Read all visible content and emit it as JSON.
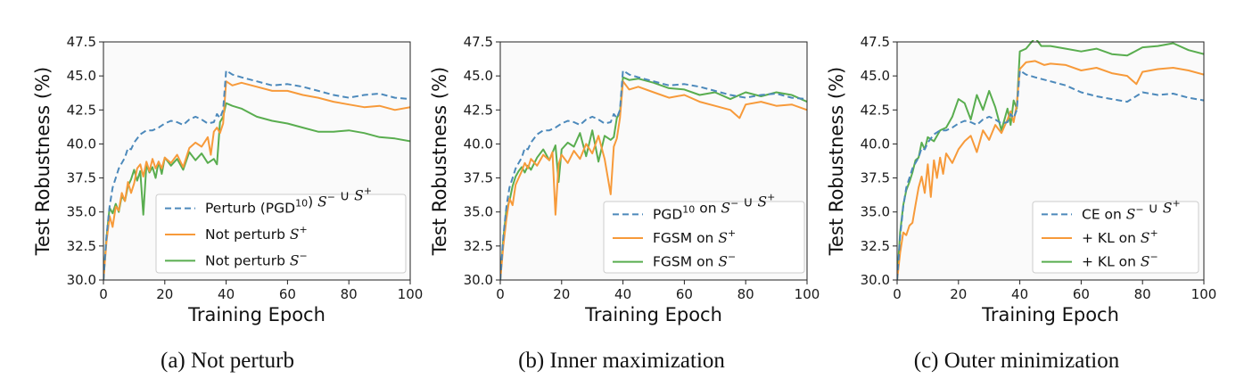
{
  "colors": {
    "blue": "#4c89bb",
    "orange": "#f79a3a",
    "green": "#59ad4f",
    "axes_bg": "#fafafa"
  },
  "chart_data": [
    {
      "type": "line",
      "caption": "(a) Not perturb",
      "xlabel": "Training Epoch",
      "ylabel": "Test Robustness (%)",
      "xlim": [
        0,
        100
      ],
      "ylim": [
        30.0,
        47.5
      ],
      "xticks": [
        "0",
        "20",
        "40",
        "60",
        "80",
        "100"
      ],
      "yticks": [
        "30.0",
        "32.5",
        "35.0",
        "37.5",
        "40.0",
        "42.5",
        "45.0",
        "47.5"
      ],
      "grid": false,
      "legend_position": "lower-right",
      "series": [
        {
          "name": "Perturb (PGD10) S− ∪ S+",
          "color": "blue",
          "style": "dashed",
          "x": [
            0,
            1,
            2,
            3,
            4,
            5,
            6,
            7,
            8,
            9,
            10,
            12,
            14,
            16,
            18,
            20,
            22,
            24,
            26,
            28,
            30,
            32,
            34,
            36,
            37,
            38,
            39,
            40,
            42,
            45,
            50,
            55,
            60,
            65,
            70,
            75,
            80,
            85,
            90,
            95,
            100
          ],
          "y": [
            30.0,
            33.2,
            35.4,
            36.8,
            37.5,
            38.2,
            38.6,
            39.0,
            39.7,
            39.6,
            40.1,
            40.7,
            41.0,
            41.0,
            41.2,
            41.5,
            41.7,
            41.6,
            41.4,
            41.8,
            42.0,
            41.8,
            41.5,
            41.6,
            42.2,
            41.9,
            42.5,
            45.4,
            45.1,
            44.9,
            44.6,
            44.3,
            44.4,
            44.2,
            43.9,
            43.6,
            43.4,
            43.6,
            43.7,
            43.4,
            43.3
          ]
        },
        {
          "name": "Not perturb S+",
          "color": "orange",
          "style": "solid",
          "x": [
            0,
            1,
            2,
            3,
            4,
            5,
            6,
            7,
            8,
            9,
            10,
            11,
            12,
            13,
            14,
            15,
            16,
            17,
            18,
            19,
            20,
            22,
            24,
            26,
            28,
            30,
            32,
            34,
            35,
            36,
            37,
            38,
            39,
            40,
            42,
            45,
            50,
            55,
            60,
            65,
            70,
            75,
            80,
            85,
            90,
            95,
            100
          ],
          "y": [
            30.0,
            32.8,
            34.7,
            33.9,
            35.4,
            35.1,
            36.4,
            35.8,
            37.2,
            36.4,
            37.1,
            38.2,
            38.5,
            37.6,
            38.7,
            38.0,
            38.9,
            38.2,
            38.7,
            38.2,
            39.0,
            38.6,
            39.2,
            38.3,
            39.7,
            40.1,
            39.8,
            40.5,
            39.2,
            40.9,
            41.2,
            40.8,
            41.5,
            44.6,
            44.3,
            44.5,
            44.2,
            43.9,
            43.9,
            43.6,
            43.4,
            43.1,
            42.9,
            42.7,
            42.8,
            42.5,
            42.7
          ]
        },
        {
          "name": "Not perturb S−",
          "color": "green",
          "style": "solid",
          "x": [
            0,
            1,
            2,
            3,
            4,
            5,
            6,
            7,
            8,
            9,
            10,
            11,
            12,
            13,
            14,
            15,
            16,
            17,
            18,
            19,
            20,
            22,
            24,
            26,
            28,
            30,
            32,
            34,
            36,
            37,
            38,
            39,
            40,
            42,
            45,
            50,
            55,
            60,
            65,
            70,
            75,
            80,
            85,
            90,
            95,
            100
          ],
          "y": [
            30.0,
            33.1,
            35.3,
            34.9,
            35.6,
            35.0,
            36.2,
            35.8,
            36.9,
            37.4,
            38.1,
            37.3,
            38.0,
            34.8,
            38.5,
            37.9,
            38.3,
            37.5,
            38.7,
            37.8,
            39.0,
            38.4,
            38.9,
            38.1,
            39.4,
            38.8,
            39.3,
            38.6,
            38.9,
            38.5,
            41.6,
            42.0,
            43.0,
            42.8,
            42.6,
            42.0,
            41.7,
            41.5,
            41.2,
            40.9,
            40.9,
            41.0,
            40.8,
            40.5,
            40.4,
            40.2
          ]
        }
      ]
    },
    {
      "type": "line",
      "caption": "(b) Inner maximization",
      "xlabel": "Training Epoch",
      "ylabel": "Test Robustness (%)",
      "xlim": [
        0,
        100
      ],
      "ylim": [
        30.0,
        47.5
      ],
      "xticks": [
        "0",
        "20",
        "40",
        "60",
        "80",
        "100"
      ],
      "yticks": [
        "30.0",
        "32.5",
        "35.0",
        "37.5",
        "40.0",
        "42.5",
        "45.0",
        "47.5"
      ],
      "grid": false,
      "legend_position": "lower-right",
      "series": [
        {
          "name": "PGD10 on S− ∪ S+",
          "color": "blue",
          "style": "dashed",
          "x": [
            0,
            1,
            2,
            3,
            4,
            5,
            6,
            7,
            8,
            9,
            10,
            12,
            14,
            16,
            18,
            20,
            22,
            24,
            26,
            28,
            30,
            32,
            34,
            36,
            37,
            38,
            39,
            40,
            42,
            45,
            50,
            55,
            60,
            65,
            70,
            75,
            80,
            85,
            90,
            95,
            100
          ],
          "y": [
            30.0,
            33.2,
            35.4,
            36.8,
            37.5,
            38.2,
            38.6,
            39.0,
            39.7,
            39.6,
            40.1,
            40.7,
            41.0,
            41.0,
            41.2,
            41.5,
            41.7,
            41.6,
            41.4,
            41.8,
            42.0,
            41.8,
            41.5,
            41.6,
            42.2,
            41.9,
            42.5,
            45.4,
            45.1,
            44.9,
            44.6,
            44.3,
            44.4,
            44.2,
            43.9,
            43.6,
            43.4,
            43.6,
            43.7,
            43.4,
            43.3
          ]
        },
        {
          "name": "FGSM on S+",
          "color": "orange",
          "style": "solid",
          "x": [
            0,
            1,
            2,
            3,
            4,
            5,
            6,
            7,
            8,
            9,
            10,
            12,
            14,
            16,
            17,
            18,
            19,
            20,
            22,
            24,
            26,
            28,
            30,
            32,
            34,
            35,
            36,
            37,
            38,
            39,
            40,
            42,
            45,
            50,
            55,
            60,
            65,
            70,
            75,
            78,
            80,
            85,
            90,
            95,
            100
          ],
          "y": [
            30.0,
            32.5,
            34.5,
            36.0,
            35.5,
            37.0,
            37.5,
            38.0,
            38.6,
            38.2,
            38.9,
            38.4,
            39.2,
            38.8,
            39.4,
            34.8,
            38.5,
            39.2,
            38.6,
            39.5,
            38.9,
            40.0,
            39.3,
            40.6,
            38.9,
            37.6,
            36.3,
            39.8,
            40.4,
            41.9,
            44.6,
            44.0,
            44.2,
            43.8,
            43.4,
            43.6,
            43.1,
            42.8,
            42.5,
            41.9,
            42.9,
            43.1,
            42.8,
            42.9,
            42.5
          ]
        },
        {
          "name": "FGSM on S−",
          "color": "green",
          "style": "solid",
          "x": [
            0,
            1,
            2,
            3,
            4,
            5,
            6,
            7,
            8,
            9,
            10,
            12,
            14,
            16,
            18,
            19,
            20,
            22,
            24,
            26,
            28,
            30,
            32,
            34,
            36,
            37,
            38,
            39,
            40,
            42,
            45,
            50,
            55,
            60,
            65,
            70,
            75,
            80,
            85,
            90,
            95,
            100
          ],
          "y": [
            30.0,
            33.0,
            35.2,
            35.8,
            36.9,
            37.6,
            38.0,
            38.3,
            37.9,
            38.4,
            38.1,
            39.0,
            39.6,
            38.8,
            39.9,
            37.2,
            39.6,
            40.1,
            39.8,
            40.8,
            39.1,
            41.0,
            38.7,
            40.6,
            40.3,
            40.5,
            41.9,
            42.3,
            44.9,
            44.7,
            44.8,
            44.5,
            44.1,
            44.0,
            43.6,
            43.8,
            43.3,
            43.8,
            43.5,
            43.8,
            43.6,
            43.1
          ]
        }
      ]
    },
    {
      "type": "line",
      "caption": "(c) Outer minimization",
      "xlabel": "Training Epoch",
      "ylabel": "Test Robustness (%)",
      "xlim": [
        0,
        100
      ],
      "ylim": [
        30.0,
        47.5
      ],
      "xticks": [
        "0",
        "20",
        "40",
        "60",
        "80",
        "100"
      ],
      "yticks": [
        "30.0",
        "32.5",
        "35.0",
        "37.5",
        "40.0",
        "42.5",
        "45.0",
        "47.5"
      ],
      "grid": false,
      "legend_position": "lower-right",
      "series": [
        {
          "name": "CE on S− ∪ S+",
          "color": "blue",
          "style": "dashed",
          "x": [
            0,
            1,
            2,
            3,
            4,
            5,
            6,
            7,
            8,
            9,
            10,
            12,
            14,
            16,
            18,
            20,
            22,
            24,
            26,
            28,
            30,
            32,
            34,
            36,
            37,
            38,
            39,
            40,
            42,
            45,
            50,
            55,
            60,
            65,
            70,
            75,
            80,
            85,
            90,
            95,
            100
          ],
          "y": [
            30.0,
            33.2,
            35.4,
            36.8,
            37.5,
            38.2,
            38.6,
            39.0,
            39.7,
            39.6,
            40.1,
            40.7,
            41.0,
            41.0,
            41.2,
            41.5,
            41.7,
            41.6,
            41.4,
            41.8,
            42.0,
            41.8,
            41.5,
            41.6,
            42.2,
            41.9,
            42.5,
            45.4,
            45.1,
            44.9,
            44.6,
            44.3,
            43.8,
            43.5,
            43.3,
            43.1,
            43.8,
            43.6,
            43.7,
            43.4,
            43.2
          ]
        },
        {
          "name": "+ KL on S+",
          "color": "orange",
          "style": "solid",
          "x": [
            0,
            1,
            2,
            3,
            4,
            5,
            6,
            7,
            8,
            9,
            10,
            11,
            12,
            13,
            14,
            15,
            16,
            18,
            20,
            22,
            24,
            26,
            28,
            30,
            32,
            34,
            36,
            37,
            38,
            39,
            40,
            42,
            45,
            48,
            50,
            55,
            60,
            65,
            70,
            75,
            78,
            80,
            85,
            90,
            95,
            100
          ],
          "y": [
            30.0,
            32.0,
            33.5,
            33.3,
            34.0,
            34.2,
            35.5,
            36.8,
            37.6,
            36.4,
            38.5,
            36.1,
            38.8,
            37.5,
            39.0,
            37.8,
            39.3,
            38.6,
            39.6,
            40.2,
            40.6,
            39.4,
            41.0,
            40.3,
            41.4,
            40.8,
            41.8,
            42.4,
            41.6,
            42.9,
            45.5,
            46.0,
            46.1,
            45.8,
            45.9,
            45.8,
            45.4,
            45.6,
            45.2,
            45.0,
            44.4,
            45.3,
            45.5,
            45.6,
            45.4,
            45.1
          ]
        },
        {
          "name": "+ KL on S−",
          "color": "green",
          "style": "solid",
          "x": [
            0,
            1,
            2,
            3,
            4,
            5,
            6,
            7,
            8,
            9,
            10,
            12,
            14,
            16,
            18,
            20,
            22,
            24,
            26,
            28,
            30,
            32,
            34,
            36,
            37,
            38,
            39,
            40,
            42,
            45,
            47,
            50,
            55,
            60,
            65,
            70,
            75,
            80,
            85,
            90,
            95,
            100
          ],
          "y": [
            30.0,
            33.5,
            35.5,
            36.6,
            37.2,
            37.9,
            38.8,
            39.0,
            40.1,
            39.6,
            40.5,
            40.2,
            41.0,
            41.2,
            42.0,
            43.3,
            43.0,
            41.8,
            43.6,
            42.5,
            43.9,
            42.7,
            41.0,
            42.6,
            41.4,
            43.2,
            42.6,
            46.8,
            47.0,
            47.8,
            47.2,
            47.2,
            47.0,
            46.8,
            47.0,
            46.6,
            46.5,
            47.1,
            47.2,
            47.4,
            46.9,
            46.6
          ]
        }
      ]
    }
  ]
}
